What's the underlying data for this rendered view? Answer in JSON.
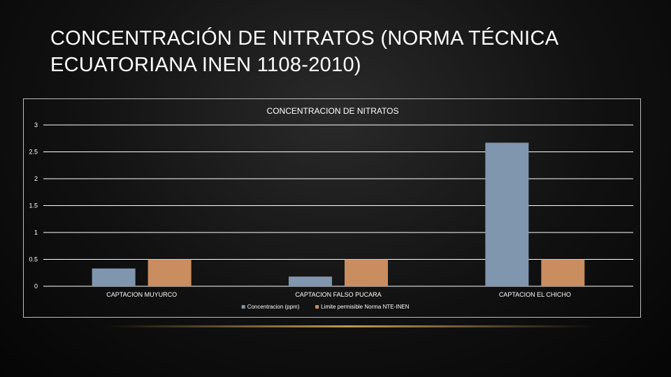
{
  "slide": {
    "title": "CONCENTRACIÓN DE NITRATOS (NORMA TÉCNICA ECUATORIANA INEN 1108-2010)"
  },
  "chart_data": {
    "type": "bar",
    "title": "CONCENTRACION DE NITRATOS",
    "xlabel": "",
    "ylabel": "",
    "ylim": [
      0,
      3
    ],
    "yticks": [
      "0",
      "0.5",
      "1",
      "1.5",
      "2",
      "2.5",
      "3"
    ],
    "categories": [
      "CAPTACION MUYURCO",
      "CAPTACION FALSO PUCARA",
      "CAPTACION EL CHICHO"
    ],
    "series": [
      {
        "name": "Concentracion (ppm)",
        "values": [
          0.33,
          0.18,
          2.67
        ],
        "color": "#8096ae"
      },
      {
        "name": "Limite permisible Norma NTE-INEN",
        "values": [
          0.5,
          0.5,
          0.5
        ],
        "color": "#c98d5f"
      }
    ],
    "grid": true,
    "legend_position": "bottom",
    "colors": {
      "text": "#ffffff",
      "grid": "#ffffff",
      "frame": "#bdbdbd"
    }
  }
}
